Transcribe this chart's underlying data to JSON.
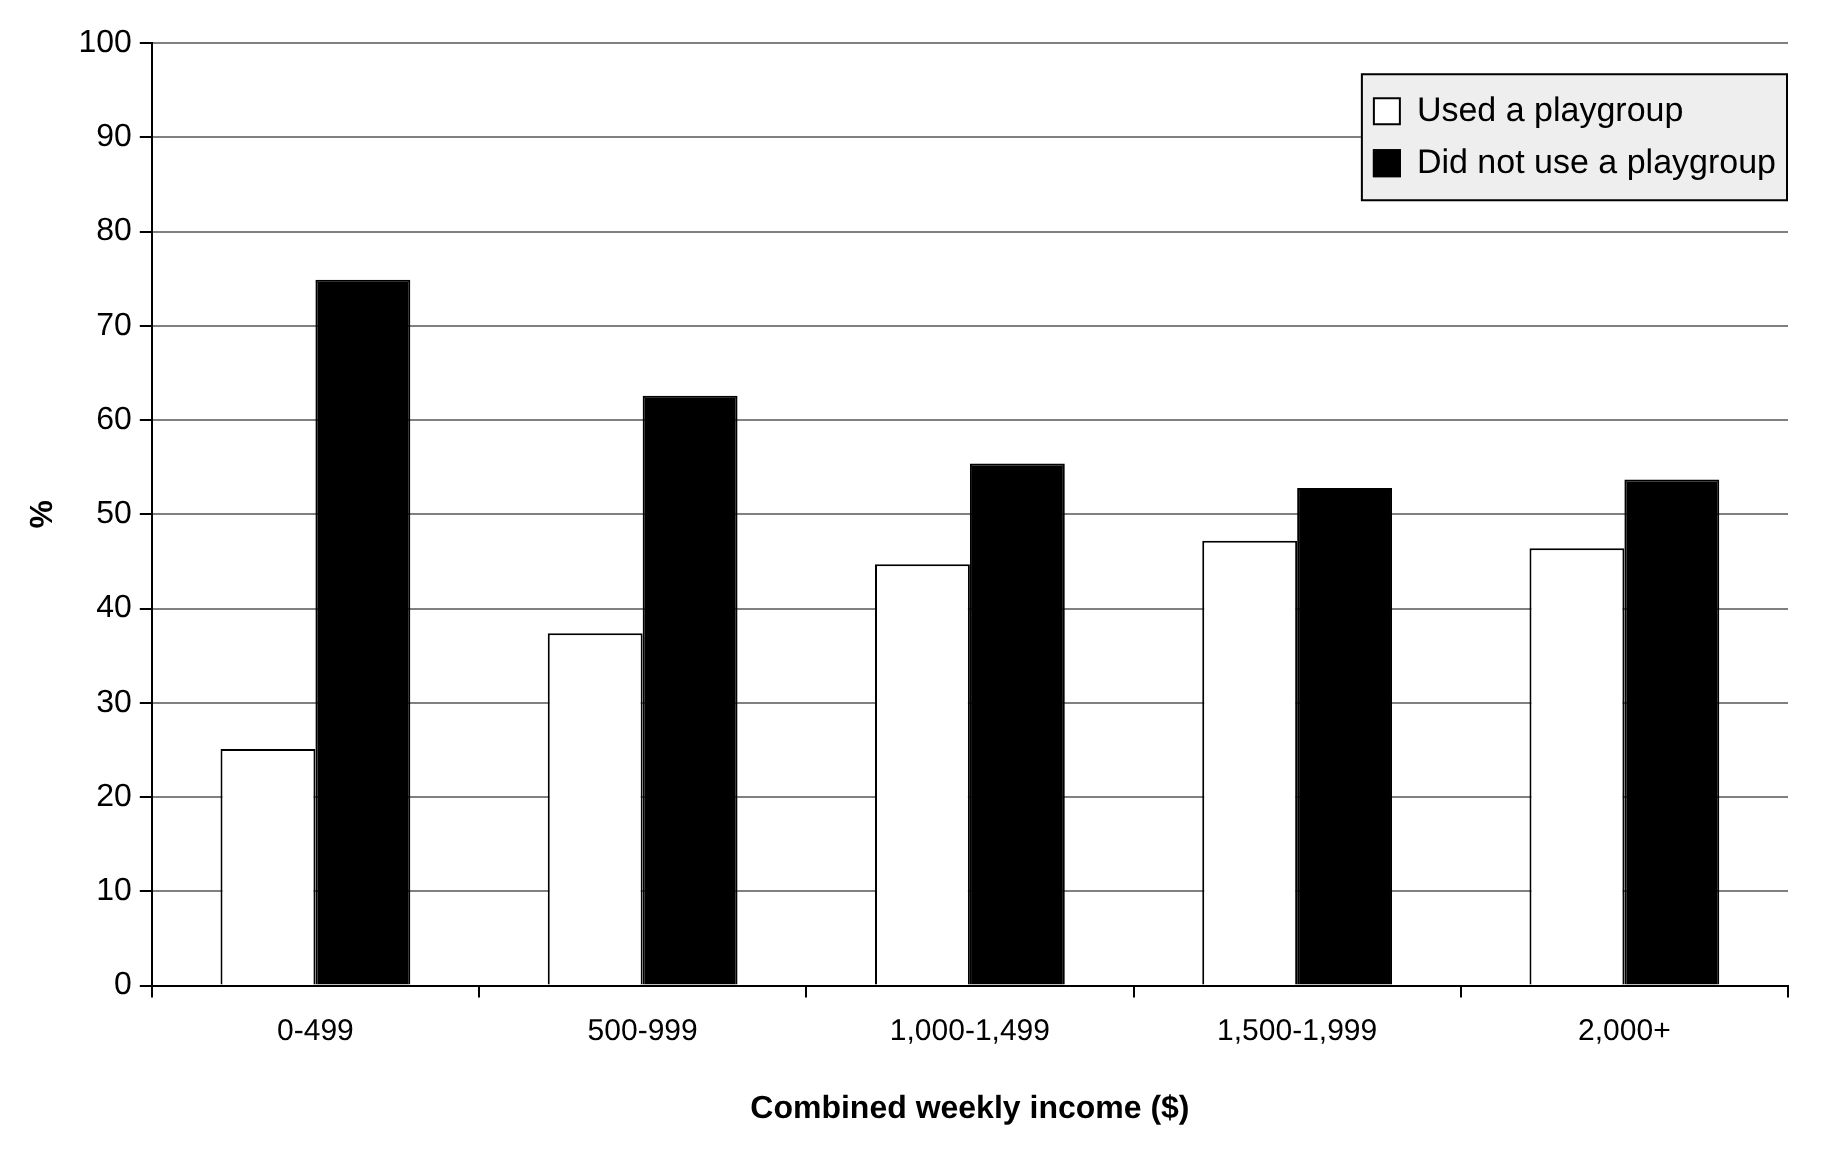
{
  "chart_data": {
    "type": "bar",
    "xlabel": "Combined weekly income ($)",
    "ylabel": "%",
    "categories": [
      "0-499",
      "500-999",
      "1,000-1,499",
      "1,500-1,999",
      "2,000+"
    ],
    "series": [
      {
        "name": "Used a playgroup",
        "color": "#ffffff",
        "values": [
          25.1,
          37.4,
          44.7,
          47.2,
          46.4
        ]
      },
      {
        "name": "Did not use a playgroup",
        "color": "#000000",
        "values": [
          74.9,
          62.6,
          55.4,
          52.8,
          53.7
        ]
      }
    ],
    "ylim": [
      0,
      100
    ],
    "yticks": [
      0,
      10,
      20,
      30,
      40,
      50,
      60,
      70,
      80,
      90,
      100
    ],
    "grid": "y",
    "legend": "top right"
  }
}
